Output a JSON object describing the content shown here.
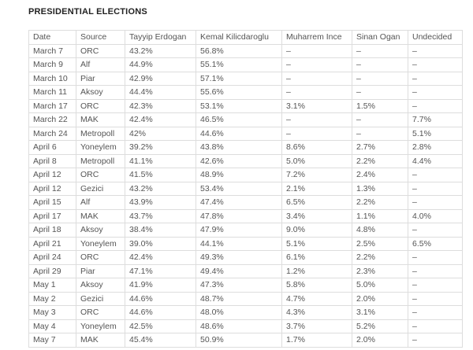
{
  "header": {
    "title": "PRESIDENTIAL ELECTIONS"
  },
  "table": {
    "columns": [
      "Date",
      "Source",
      "Tayyip Erdogan",
      "Kemal Kilicdaroglu",
      "Muharrem Ince",
      "Sinan Ogan",
      "Undecided"
    ],
    "rows": [
      [
        "March 7",
        "ORC",
        "43.2%",
        "56.8%",
        "–",
        "–",
        "–"
      ],
      [
        "March 9",
        "Alf",
        "44.9%",
        "55.1%",
        "–",
        "–",
        "–"
      ],
      [
        "March 10",
        "Piar",
        "42.9%",
        "57.1%",
        "–",
        "–",
        "–"
      ],
      [
        "March 11",
        "Aksoy",
        "44.4%",
        "55.6%",
        "–",
        "–",
        "–"
      ],
      [
        "March 17",
        "ORC",
        "42.3%",
        "53.1%",
        "3.1%",
        "1.5%",
        "–"
      ],
      [
        "March 22",
        "MAK",
        "42.4%",
        "46.5%",
        "–",
        "–",
        "7.7%"
      ],
      [
        "March 24",
        "Metropoll",
        "42%",
        "44.6%",
        "–",
        "–",
        "5.1%"
      ],
      [
        "April 6",
        "Yoneylem",
        "39.2%",
        "43.8%",
        "8.6%",
        "2.7%",
        "2.8%"
      ],
      [
        "April 8",
        "Metropoll",
        "41.1%",
        "42.6%",
        "5.0%",
        "2.2%",
        "4.4%"
      ],
      [
        "April 12",
        "ORC",
        "41.5%",
        "48.9%",
        "7.2%",
        "2.4%",
        "–"
      ],
      [
        "April 12",
        "Gezici",
        "43.2%",
        "53.4%",
        "2.1%",
        "1.3%",
        "–"
      ],
      [
        "April 15",
        "Alf",
        "43.9%",
        "47.4%",
        "6.5%",
        "2.2%",
        "–"
      ],
      [
        "April 17",
        "MAK",
        "43.7%",
        "47.8%",
        "3.4%",
        "1.1%",
        "4.0%"
      ],
      [
        "April 18",
        "Aksoy",
        "38.4%",
        "47.9%",
        "9.0%",
        "4.8%",
        "–"
      ],
      [
        "April 21",
        "Yoneylem",
        "39.0%",
        "44.1%",
        "5.1%",
        "2.5%",
        "6.5%"
      ],
      [
        "April 24",
        "ORC",
        "42.4%",
        "49.3%",
        "6.1%",
        "2.2%",
        "–"
      ],
      [
        "April 29",
        "Piar",
        "47.1%",
        "49.4%",
        "1.2%",
        "2.3%",
        "–"
      ],
      [
        "May 1",
        "Aksoy",
        "41.9%",
        "47.3%",
        "5.8%",
        "5.0%",
        "–"
      ],
      [
        "May 2",
        "Gezici",
        "44.6%",
        "48.7%",
        "4.7%",
        "2.0%",
        "–"
      ],
      [
        "May 3",
        "ORC",
        "44.6%",
        "48.0%",
        "4.3%",
        "3.1%",
        "–"
      ],
      [
        "May 4",
        "Yoneylem",
        "42.5%",
        "48.6%",
        "3.7%",
        "5.2%",
        "–"
      ],
      [
        "May 7",
        "MAK",
        "45.4%",
        "50.9%",
        "1.7%",
        "2.0%",
        "–"
      ]
    ]
  }
}
